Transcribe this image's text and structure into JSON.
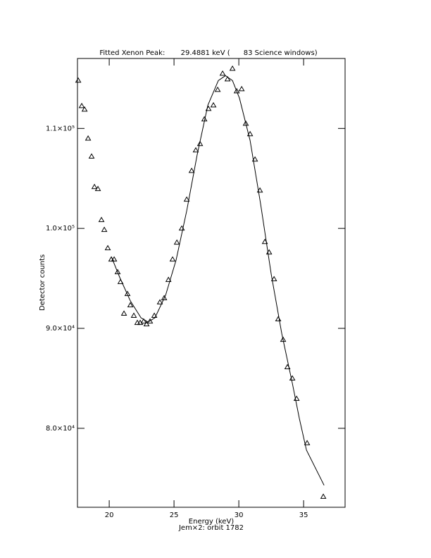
{
  "chart_data": {
    "type": "scatter",
    "title": "Fitted Xenon Peak:       29.4881 keV (      83 Science windows)",
    "x_label": "Energy (keV)",
    "subtitle": "Jem×2: orbit 1782",
    "y_label": "Detector counts",
    "xlim": [
      17.55,
      38.2
    ],
    "xticks": [
      20,
      25,
      30,
      35
    ],
    "ylim": [
      72100,
      117000
    ],
    "yticks": [
      {
        "value": 80000,
        "label": "8.0×10⁴"
      },
      {
        "value": 90000,
        "label": "9.0×10⁴"
      },
      {
        "value": 100000,
        "label": "1.0×10⁵"
      },
      {
        "value": 110000,
        "label": "1.1×10⁵"
      }
    ],
    "series": [
      {
        "mode": "markers",
        "color": "#000000",
        "x": [
          17.61,
          17.88,
          18.1,
          18.37,
          18.64,
          18.86,
          19.13,
          19.4,
          19.62,
          19.89,
          20.16,
          20.38,
          20.65,
          20.87,
          21.14,
          21.41,
          21.63,
          21.9,
          22.17,
          22.39,
          22.66,
          22.88,
          23.15,
          23.48,
          23.91,
          24.24,
          24.57,
          24.89,
          25.22,
          25.6,
          25.98,
          26.36,
          26.68,
          27.01,
          27.34,
          27.66,
          28.04,
          28.37,
          28.75,
          29.13,
          29.51,
          29.84,
          30.22,
          30.54,
          30.87,
          31.25,
          31.63,
          32.01,
          32.34,
          32.72,
          33.04,
          33.42,
          33.75,
          34.13,
          34.46,
          35.27,
          36.52
        ],
        "values": [
          114800,
          112250,
          111900,
          109000,
          107200,
          104150,
          103950,
          100850,
          99860,
          98030,
          96900,
          96900,
          95630,
          94650,
          91480,
          93450,
          92320,
          91270,
          90560,
          90560,
          90700,
          90420,
          90700,
          91270,
          92610,
          93030,
          94860,
          96900,
          98590,
          100000,
          102890,
          105770,
          107820,
          108450,
          110920,
          111970,
          112320,
          113870,
          115490,
          114930,
          115990,
          113730,
          113940,
          110490,
          109440,
          106900,
          103800,
          98660,
          97610,
          94930,
          90920,
          88870,
          86130,
          85000,
          82960,
          78520,
          73170
        ]
      },
      {
        "mode": "lines",
        "color": "#000000",
        "x": [
          20.16,
          20.82,
          21.63,
          22.45,
          22.99,
          23.53,
          24.35,
          25.16,
          25.98,
          26.79,
          27.61,
          28.42,
          28.97,
          29.51,
          30.05,
          30.87,
          31.68,
          32.5,
          33.32,
          34.13,
          34.67,
          35.22,
          36.58
        ],
        "values": [
          97180,
          95070,
          92750,
          91060,
          90630,
          91060,
          93310,
          96830,
          101760,
          107390,
          112320,
          114790,
          115280,
          114790,
          113030,
          108800,
          102460,
          95420,
          89440,
          84510,
          80990,
          77820,
          74300
        ]
      }
    ]
  }
}
